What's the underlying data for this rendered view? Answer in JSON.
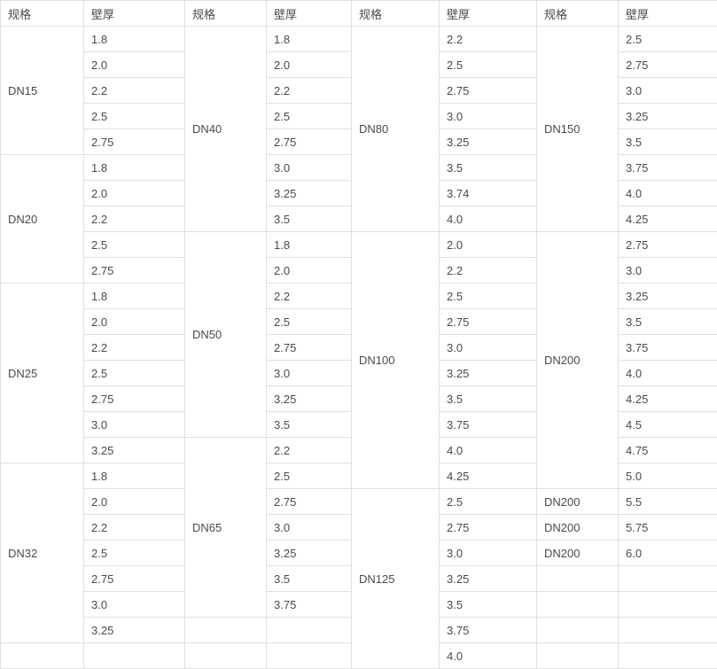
{
  "page": {
    "background_color": "#ffffff",
    "text_color": "#4a4a4a",
    "border_color": "#e0e0e0"
  },
  "table": {
    "header": [
      "规格",
      "壁厚",
      "规格",
      "壁厚",
      "规格",
      "壁厚",
      "规格",
      "壁厚"
    ],
    "rows": [
      [
        {
          "t": "DN15",
          "rs": 5
        },
        {
          "t": "1.8"
        },
        {
          "t": "DN40",
          "rs": 8
        },
        {
          "t": "1.8"
        },
        {
          "t": "DN80",
          "rs": 8
        },
        {
          "t": "2.2"
        },
        {
          "t": "DN150",
          "rs": 8
        },
        {
          "t": "2.5"
        }
      ],
      [
        {
          "t": "2.0"
        },
        {
          "t": "2.0"
        },
        {
          "t": "2.5"
        },
        {
          "t": "2.75"
        }
      ],
      [
        {
          "t": "2.2"
        },
        {
          "t": "2.2"
        },
        {
          "t": "2.75"
        },
        {
          "t": "3.0"
        }
      ],
      [
        {
          "t": "2.5"
        },
        {
          "t": "2.5"
        },
        {
          "t": "3.0"
        },
        {
          "t": "3.25"
        }
      ],
      [
        {
          "t": "2.75"
        },
        {
          "t": "2.75"
        },
        {
          "t": "3.25"
        },
        {
          "t": "3.5"
        }
      ],
      [
        {
          "t": "DN20",
          "rs": 5
        },
        {
          "t": "1.8"
        },
        {
          "t": "3.0"
        },
        {
          "t": "3.5"
        },
        {
          "t": "3.75"
        }
      ],
      [
        {
          "t": "2.0"
        },
        {
          "t": "3.25"
        },
        {
          "t": "3.74"
        },
        {
          "t": "4.0"
        }
      ],
      [
        {
          "t": "2.2"
        },
        {
          "t": "3.5"
        },
        {
          "t": "4.0"
        },
        {
          "t": "4.25"
        }
      ],
      [
        {
          "t": "2.5"
        },
        {
          "t": "DN50",
          "rs": 8
        },
        {
          "t": "1.8"
        },
        {
          "t": "DN100",
          "rs": 10
        },
        {
          "t": "2.0"
        },
        {
          "t": "DN200",
          "rs": 10
        },
        {
          "t": "2.75"
        }
      ],
      [
        {
          "t": "2.75"
        },
        {
          "t": "2.0"
        },
        {
          "t": "2.2"
        },
        {
          "t": "3.0"
        }
      ],
      [
        {
          "t": "DN25",
          "rs": 7
        },
        {
          "t": "1.8"
        },
        {
          "t": "2.2"
        },
        {
          "t": "2.5"
        },
        {
          "t": "3.25"
        }
      ],
      [
        {
          "t": "2.0"
        },
        {
          "t": "2.5"
        },
        {
          "t": "2.75"
        },
        {
          "t": "3.5"
        }
      ],
      [
        {
          "t": "2.2"
        },
        {
          "t": "2.75"
        },
        {
          "t": "3.0"
        },
        {
          "t": "3.75"
        }
      ],
      [
        {
          "t": "2.5"
        },
        {
          "t": "3.0"
        },
        {
          "t": "3.25"
        },
        {
          "t": "4.0"
        }
      ],
      [
        {
          "t": "2.75"
        },
        {
          "t": "3.25"
        },
        {
          "t": "3.5"
        },
        {
          "t": "4.25"
        }
      ],
      [
        {
          "t": "3.0"
        },
        {
          "t": "3.5"
        },
        {
          "t": "3.75"
        },
        {
          "t": "4.5"
        }
      ],
      [
        {
          "t": "3.25"
        },
        {
          "t": "DN65",
          "rs": 7
        },
        {
          "t": "2.2"
        },
        {
          "t": "4.0"
        },
        {
          "t": "4.75"
        }
      ],
      [
        {
          "t": "DN32",
          "rs": 7
        },
        {
          "t": "1.8"
        },
        {
          "t": "2.5"
        },
        {
          "t": "4.25"
        },
        {
          "t": "5.0"
        }
      ],
      [
        {
          "t": "2.0"
        },
        {
          "t": "2.75"
        },
        {
          "t": "DN125",
          "rs": 7
        },
        {
          "t": "2.5"
        },
        {
          "t": "DN200"
        },
        {
          "t": "5.5"
        }
      ],
      [
        {
          "t": "2.2"
        },
        {
          "t": "3.0"
        },
        {
          "t": "2.75"
        },
        {
          "t": "DN200"
        },
        {
          "t": "5.75"
        }
      ],
      [
        {
          "t": "2.5"
        },
        {
          "t": "3.25"
        },
        {
          "t": "3.0"
        },
        {
          "t": "DN200"
        },
        {
          "t": "6.0"
        }
      ],
      [
        {
          "t": "2.75"
        },
        {
          "t": "3.5"
        },
        {
          "t": "3.25"
        },
        {
          "t": ""
        },
        {
          "t": ""
        }
      ],
      [
        {
          "t": "3.0"
        },
        {
          "t": "3.75"
        },
        {
          "t": "3.5"
        },
        {
          "t": ""
        },
        {
          "t": ""
        }
      ],
      [
        {
          "t": "3.25"
        },
        {
          "t": ""
        },
        {
          "t": ""
        },
        {
          "t": "3.75"
        },
        {
          "t": ""
        },
        {
          "t": ""
        }
      ],
      [
        {
          "t": ""
        },
        {
          "t": ""
        },
        {
          "t": ""
        },
        {
          "t": ""
        },
        {
          "t": "4.0"
        },
        {
          "t": ""
        },
        {
          "t": ""
        }
      ]
    ]
  }
}
